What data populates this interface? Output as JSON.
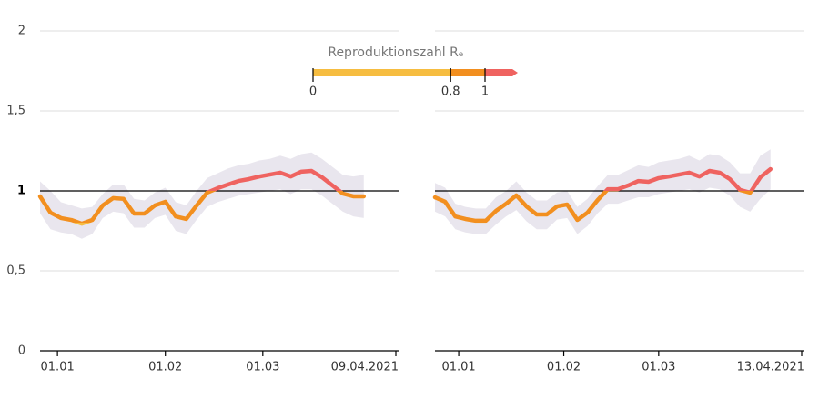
{
  "legend": {
    "title": "Reproduktionszahl Rₑ",
    "thresholds": [
      0,
      {
        "value": 0.8,
        "label": "0,8"
      },
      1
    ],
    "colors": [
      "#f6bd41",
      "#f28f1f",
      "#ef6360"
    ]
  },
  "chart_data": [
    {
      "type": "line",
      "x": [
        "2020-12-27",
        "2020-12-30",
        "2021-01-02",
        "2021-01-05",
        "2021-01-08",
        "2021-01-11",
        "2021-01-14",
        "2021-01-17",
        "2021-01-20",
        "2021-01-23",
        "2021-01-26",
        "2021-01-29",
        "2021-02-01",
        "2021-02-04",
        "2021-02-07",
        "2021-02-10",
        "2021-02-13",
        "2021-02-16",
        "2021-02-19",
        "2021-02-22",
        "2021-02-25",
        "2021-02-28",
        "2021-03-03",
        "2021-03-06",
        "2021-03-09",
        "2021-03-12",
        "2021-03-15",
        "2021-03-18",
        "2021-03-21",
        "2021-03-24",
        "2021-03-27",
        "2021-03-30"
      ],
      "values": [
        0.966,
        0.864,
        0.83,
        0.818,
        0.795,
        0.818,
        0.909,
        0.955,
        0.95,
        0.858,
        0.858,
        0.909,
        0.932,
        0.84,
        0.824,
        0.909,
        0.989,
        1.017,
        1.04,
        1.062,
        1.074,
        1.09,
        1.102,
        1.114,
        1.09,
        1.12,
        1.125,
        1.085,
        1.034,
        0.983,
        0.966,
        0.966
      ],
      "upper": [
        1.06,
        1.0,
        0.93,
        0.91,
        0.89,
        0.9,
        0.98,
        1.04,
        1.04,
        0.95,
        0.94,
        0.99,
        1.02,
        0.93,
        0.91,
        1.0,
        1.08,
        1.11,
        1.14,
        1.16,
        1.17,
        1.19,
        1.2,
        1.22,
        1.2,
        1.23,
        1.24,
        1.2,
        1.15,
        1.1,
        1.09,
        1.1
      ],
      "lower": [
        0.86,
        0.76,
        0.74,
        0.73,
        0.7,
        0.73,
        0.83,
        0.87,
        0.86,
        0.77,
        0.77,
        0.83,
        0.85,
        0.75,
        0.73,
        0.82,
        0.9,
        0.93,
        0.95,
        0.97,
        0.98,
        0.99,
        1.0,
        1.01,
        0.98,
        1.01,
        1.01,
        0.97,
        0.92,
        0.87,
        0.84,
        0.83
      ],
      "band_color": "#e9e6ee",
      "xlim": [
        "2020-12-27",
        "2021-04-09"
      ],
      "xticks": [
        {
          "value": "2021-01-01",
          "label": "01.01"
        },
        {
          "value": "2021-02-01",
          "label": "01.02"
        },
        {
          "value": "2021-03-01",
          "label": "01.03"
        },
        {
          "value": "2021-04-09",
          "label": "09.04.2021"
        }
      ],
      "ylim": [
        0,
        2
      ],
      "yticks": [
        0,
        {
          "value": 0.5,
          "label": "0,5"
        },
        1,
        {
          "value": 1.5,
          "label": "1,5"
        },
        2
      ],
      "reference_line": 1,
      "grid": true
    },
    {
      "type": "line",
      "x": [
        "2020-12-25",
        "2020-12-28",
        "2020-12-31",
        "2021-01-03",
        "2021-01-06",
        "2021-01-09",
        "2021-01-12",
        "2021-01-15",
        "2021-01-18",
        "2021-01-21",
        "2021-01-24",
        "2021-01-27",
        "2021-01-30",
        "2021-02-02",
        "2021-02-05",
        "2021-02-08",
        "2021-02-11",
        "2021-02-14",
        "2021-02-17",
        "2021-02-20",
        "2021-02-23",
        "2021-02-26",
        "2021-03-01",
        "2021-03-04",
        "2021-03-07",
        "2021-03-10",
        "2021-03-13",
        "2021-03-16",
        "2021-03-19",
        "2021-03-22",
        "2021-03-25",
        "2021-03-28",
        "2021-03-31",
        "2021-04-03"
      ],
      "values": [
        0.96,
        0.932,
        0.84,
        0.824,
        0.813,
        0.813,
        0.875,
        0.92,
        0.972,
        0.903,
        0.852,
        0.852,
        0.903,
        0.915,
        0.818,
        0.864,
        0.943,
        1.011,
        1.011,
        1.034,
        1.062,
        1.057,
        1.08,
        1.09,
        1.102,
        1.114,
        1.09,
        1.125,
        1.114,
        1.074,
        1.006,
        0.989,
        1.085,
        1.136
      ],
      "upper": [
        1.05,
        1.02,
        0.92,
        0.9,
        0.89,
        0.89,
        0.96,
        1.0,
        1.06,
        0.99,
        0.94,
        0.94,
        0.99,
        1.0,
        0.9,
        0.95,
        1.03,
        1.1,
        1.1,
        1.13,
        1.16,
        1.15,
        1.18,
        1.19,
        1.2,
        1.22,
        1.19,
        1.23,
        1.22,
        1.18,
        1.11,
        1.11,
        1.22,
        1.26
      ],
      "lower": [
        0.87,
        0.84,
        0.76,
        0.74,
        0.73,
        0.73,
        0.79,
        0.84,
        0.88,
        0.81,
        0.76,
        0.76,
        0.82,
        0.83,
        0.73,
        0.78,
        0.86,
        0.92,
        0.92,
        0.94,
        0.96,
        0.96,
        0.98,
        0.99,
        1.0,
        1.01,
        0.99,
        1.02,
        1.01,
        0.97,
        0.9,
        0.87,
        0.95,
        1.01
      ],
      "band_color": "#e9e6ee",
      "xlim": [
        "2020-12-25",
        "2021-04-13"
      ],
      "xticks": [
        {
          "value": "2021-01-01",
          "label": "01.01"
        },
        {
          "value": "2021-02-01",
          "label": "01.02"
        },
        {
          "value": "2021-03-01",
          "label": "01.03"
        },
        {
          "value": "2021-04-13",
          "label": "13.04.2021"
        }
      ],
      "ylim": [
        0,
        2
      ],
      "yticks": [
        0,
        {
          "value": 0.5,
          "label": "0,5"
        },
        1,
        {
          "value": 1.5,
          "label": "1,5"
        },
        2
      ],
      "reference_line": 1,
      "grid": true
    }
  ]
}
